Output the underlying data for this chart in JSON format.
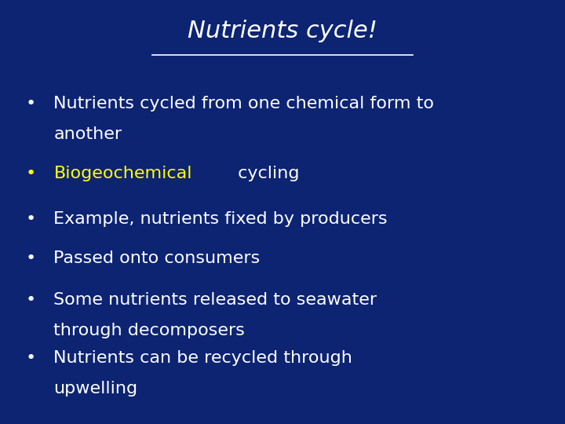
{
  "background_color": "#0d2473",
  "title": "Nutrients cycle!",
  "title_color": "#ffffff",
  "title_fontsize": 22,
  "underline_color": "#ffffff",
  "bullet_color": "#ffffff",
  "highlight_color": "#ffff00",
  "bullet_fontsize": 16,
  "bullets": [
    {
      "lines": [
        "Nutrients cycled from one chemical form to",
        "another"
      ],
      "highlight_line": null,
      "highlight_word": null
    },
    {
      "lines": [
        "Biogeochemical cycling"
      ],
      "highlight_line": 0,
      "highlight_word": "Biogeochemical",
      "bullet_color": "#ffff00"
    },
    {
      "lines": [
        "Example, nutrients fixed by producers"
      ],
      "highlight_line": null,
      "highlight_word": null
    },
    {
      "lines": [
        "Passed onto consumers"
      ],
      "highlight_line": null,
      "highlight_word": null
    },
    {
      "lines": [
        "Some nutrients released to seawater",
        "through decomposers"
      ],
      "highlight_line": null,
      "highlight_word": null
    },
    {
      "lines": [
        "Nutrients can be recycled through",
        "upwelling"
      ],
      "highlight_line": null,
      "highlight_word": null
    }
  ],
  "figwidth": 7.2,
  "figheight": 5.4,
  "dpi": 100
}
